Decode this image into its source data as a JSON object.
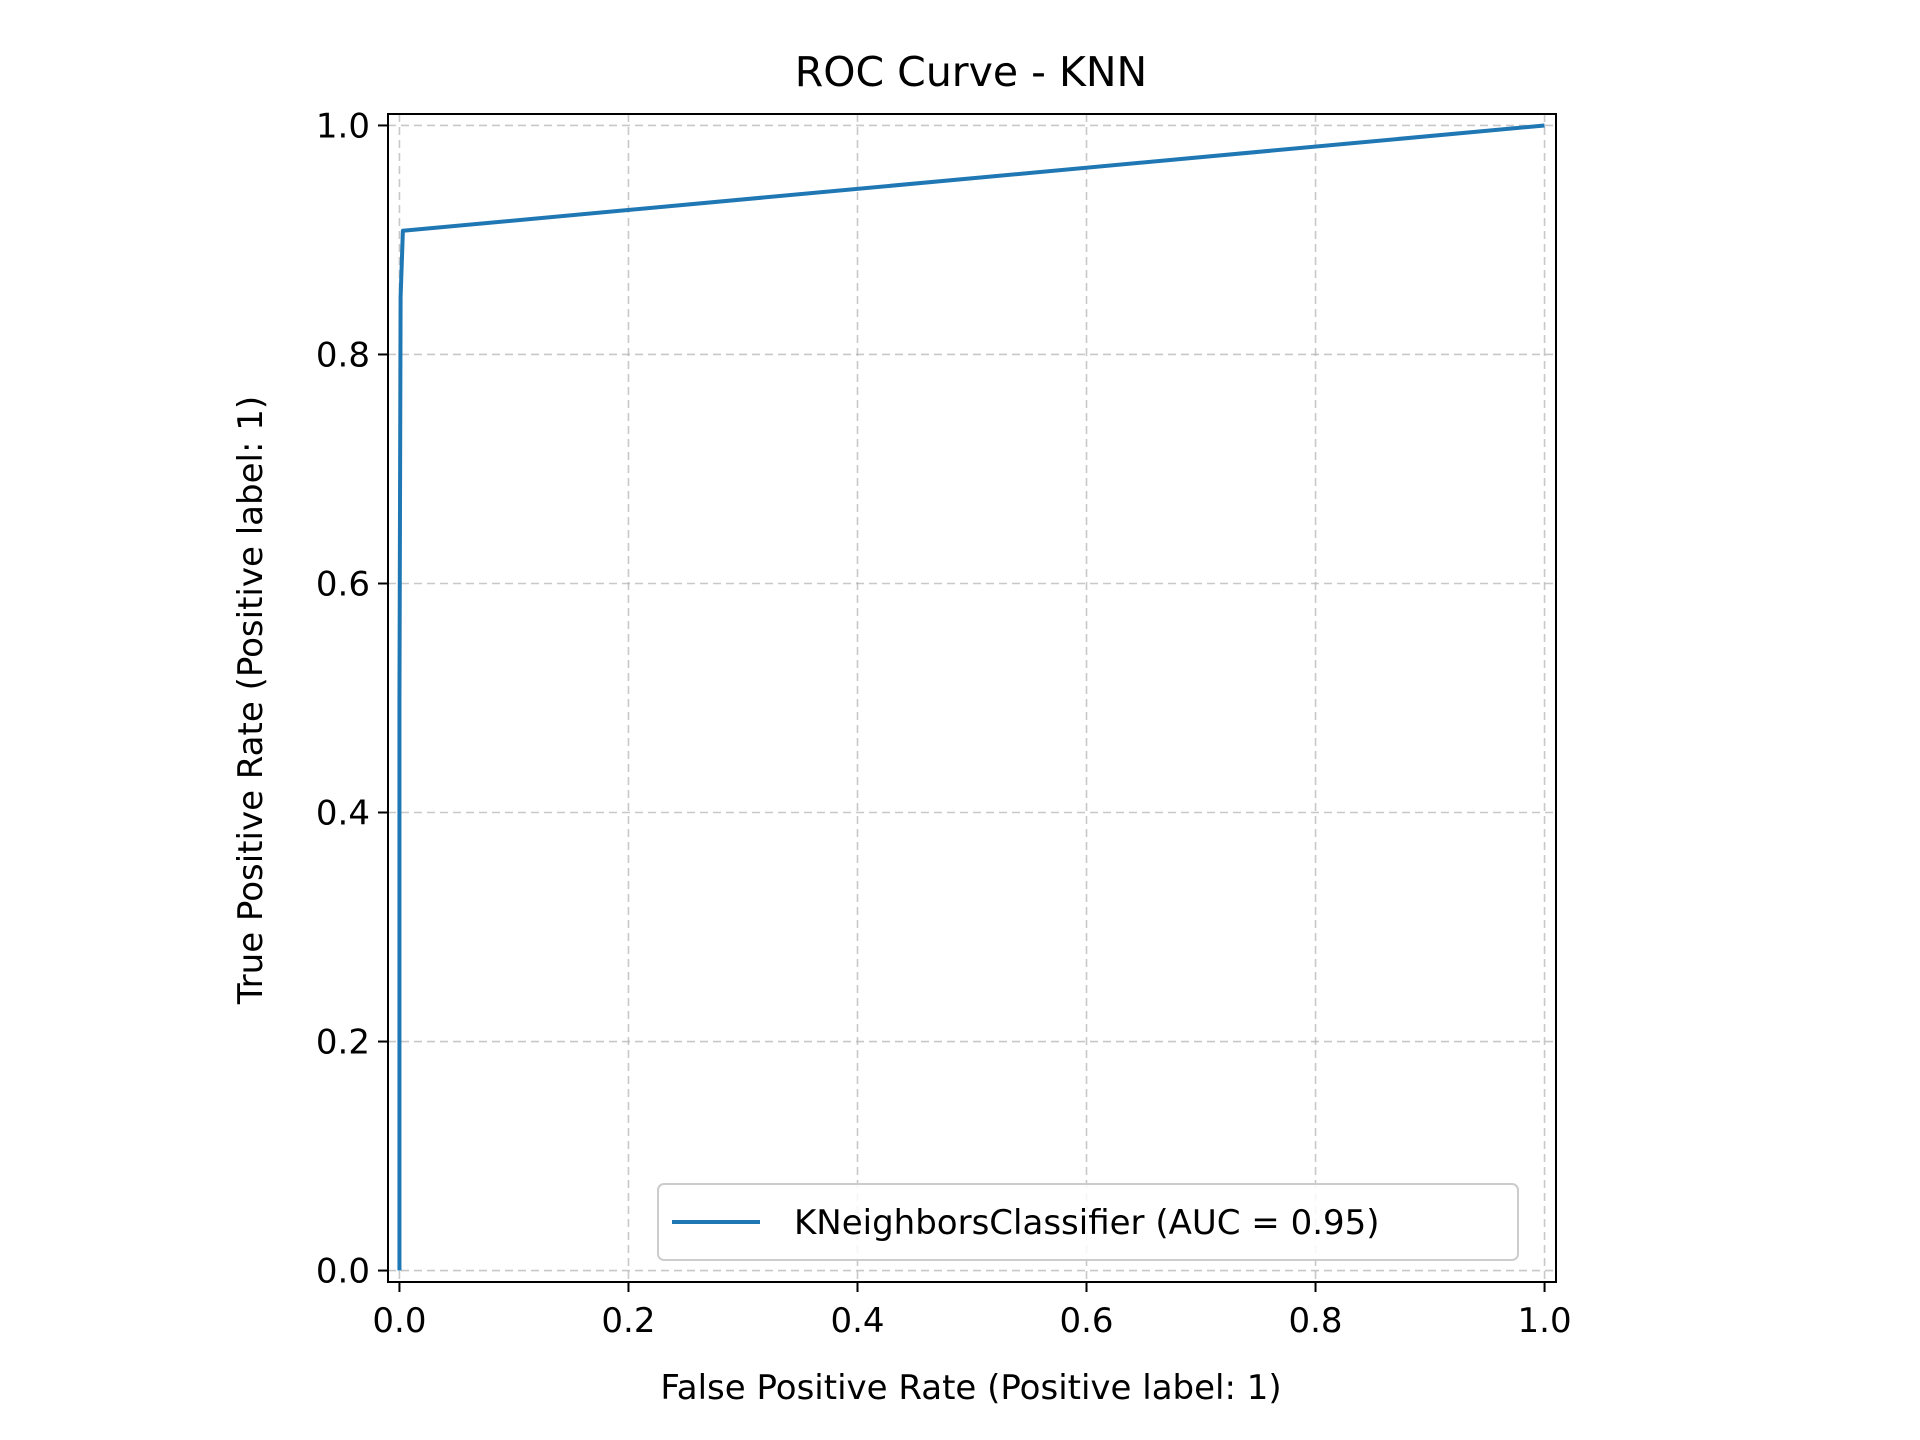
{
  "chart_data": {
    "type": "line",
    "title": "ROC Curve - KNN",
    "xlabel": "False Positive Rate (Positive label: 1)",
    "ylabel": "True Positive Rate (Positive label: 1)",
    "xlim": [
      -0.01,
      1.01
    ],
    "ylim": [
      -0.01,
      1.01
    ],
    "xticks": [
      0.0,
      0.2,
      0.4,
      0.6,
      0.8,
      1.0
    ],
    "xtick_labels": [
      "0.0",
      "0.2",
      "0.4",
      "0.6",
      "0.8",
      "1.0"
    ],
    "yticks": [
      0.0,
      0.2,
      0.4,
      0.6,
      0.8,
      1.0
    ],
    "ytick_labels": [
      "0.0",
      "0.2",
      "0.4",
      "0.6",
      "0.8",
      "1.0"
    ],
    "grid": true,
    "legend_position": "lower-right",
    "series": [
      {
        "name": "KNeighborsClassifier (AUC = 0.95)",
        "color": "#1f77b4",
        "x": [
          0.0,
          0.0,
          0.001,
          0.003,
          1.0
        ],
        "y": [
          0.0,
          0.5,
          0.85,
          0.908,
          1.0
        ]
      }
    ]
  }
}
